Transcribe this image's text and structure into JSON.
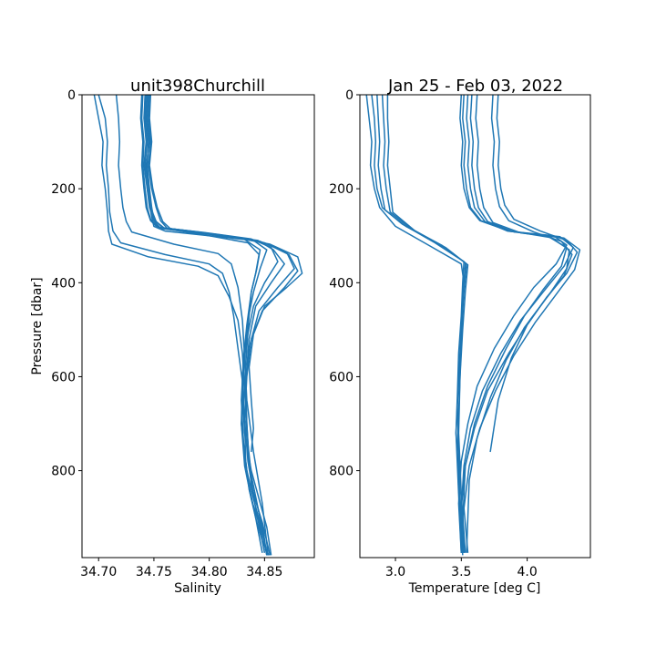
{
  "chart_data": [
    {
      "type": "line",
      "title": "unit398Churchill",
      "xlabel": "Salinity",
      "ylabel": "Pressure [dbar]",
      "xlim": [
        34.685,
        34.895
      ],
      "ylim": [
        985,
        0
      ],
      "y_inverted": true,
      "xticks": [
        34.7,
        34.75,
        34.8,
        34.85
      ],
      "xtick_labels": [
        "34.70",
        "34.75",
        "34.80",
        "34.85"
      ],
      "yticks": [
        0,
        200,
        400,
        600,
        800
      ],
      "ytick_labels": [
        "0",
        "200",
        "400",
        "600",
        "800"
      ],
      "line_color": "#1f77b4",
      "grid": false,
      "series": [
        {
          "x": [
            34.742,
            34.741,
            34.743,
            34.741,
            34.744,
            34.746,
            34.748,
            34.75,
            34.76,
            34.8,
            34.835,
            34.845,
            34.842,
            34.838,
            34.836,
            34.834,
            34.832,
            34.834,
            34.836,
            34.838,
            34.844,
            34.849,
            34.852
          ],
          "y": [
            0,
            50,
            100,
            150,
            200,
            230,
            260,
            280,
            290,
            300,
            315,
            340,
            380,
            420,
            470,
            540,
            610,
            700,
            780,
            830,
            880,
            930,
            980
          ]
        },
        {
          "x": [
            34.745,
            34.744,
            34.746,
            34.743,
            34.745,
            34.747,
            34.752,
            34.76,
            34.8,
            34.84,
            34.852,
            34.846,
            34.84,
            34.835,
            34.832,
            34.83,
            34.832,
            34.838,
            34.845,
            34.852,
            34.856
          ],
          "y": [
            0,
            50,
            100,
            150,
            200,
            240,
            270,
            285,
            300,
            310,
            330,
            370,
            420,
            480,
            550,
            640,
            720,
            800,
            860,
            920,
            980
          ]
        },
        {
          "x": [
            34.74,
            34.739,
            34.741,
            34.74,
            34.742,
            34.744,
            34.747,
            34.754,
            34.79,
            34.83,
            34.846,
            34.843,
            34.838,
            34.834,
            34.831,
            34.829,
            34.831,
            34.835,
            34.842,
            34.848
          ],
          "y": [
            0,
            50,
            100,
            150,
            200,
            240,
            265,
            282,
            292,
            305,
            330,
            370,
            420,
            490,
            560,
            650,
            740,
            820,
            900,
            975
          ]
        },
        {
          "x": [
            34.744,
            34.743,
            34.745,
            34.744,
            34.746,
            34.748,
            34.75,
            34.758,
            34.795,
            34.838,
            34.856,
            34.862,
            34.85,
            34.84,
            34.834,
            34.83,
            34.829,
            34.833,
            34.84,
            34.847,
            34.852
          ],
          "y": [
            0,
            50,
            100,
            150,
            200,
            240,
            265,
            283,
            293,
            307,
            325,
            355,
            400,
            450,
            520,
            600,
            700,
            790,
            860,
            920,
            980
          ]
        },
        {
          "x": [
            34.743,
            34.742,
            34.744,
            34.742,
            34.744,
            34.746,
            34.75,
            34.756,
            34.8,
            34.844,
            34.858,
            34.868,
            34.856,
            34.842,
            34.836,
            34.833,
            34.834,
            34.836,
            34.842,
            34.85
          ],
          "y": [
            0,
            50,
            100,
            150,
            200,
            240,
            268,
            284,
            296,
            310,
            330,
            360,
            400,
            450,
            520,
            610,
            700,
            790,
            880,
            975
          ]
        },
        {
          "x": [
            34.739,
            34.738,
            34.74,
            34.739,
            34.741,
            34.743,
            34.747,
            34.754,
            34.8,
            34.846,
            34.87,
            34.877,
            34.862,
            34.845,
            34.837,
            34.832,
            34.829,
            34.832,
            34.838,
            34.846,
            34.853
          ],
          "y": [
            0,
            50,
            100,
            150,
            200,
            240,
            268,
            284,
            297,
            312,
            335,
            370,
            410,
            460,
            530,
            620,
            700,
            790,
            860,
            920,
            980
          ]
        },
        {
          "x": [
            34.746,
            34.745,
            34.747,
            34.745,
            34.748,
            34.752,
            34.756,
            34.762,
            34.81,
            34.85,
            34.872,
            34.88,
            34.868,
            34.848,
            34.838,
            34.834,
            34.832,
            34.835,
            34.84,
            34.848,
            34.855
          ],
          "y": [
            0,
            50,
            100,
            150,
            200,
            240,
            268,
            284,
            298,
            315,
            340,
            375,
            410,
            460,
            520,
            600,
            690,
            780,
            850,
            910,
            980
          ]
        },
        {
          "x": [
            34.747,
            34.746,
            34.748,
            34.746,
            34.749,
            34.753,
            34.758,
            34.765,
            34.815,
            34.855,
            34.88,
            34.884,
            34.87,
            34.85,
            34.84,
            34.836,
            34.838,
            34.84,
            34.838
          ],
          "y": [
            0,
            50,
            100,
            150,
            200,
            240,
            270,
            285,
            300,
            318,
            345,
            380,
            410,
            450,
            510,
            580,
            650,
            710,
            760
          ]
        },
        {
          "x": [
            34.7,
            34.706,
            34.708,
            34.707,
            34.709,
            34.71,
            34.713,
            34.72,
            34.76,
            34.8,
            34.812,
            34.818,
            34.822,
            34.826,
            34.83,
            34.832,
            34.833,
            34.836,
            34.842,
            34.848,
            34.854
          ],
          "y": [
            0,
            50,
            100,
            150,
            200,
            250,
            290,
            315,
            340,
            360,
            380,
            420,
            470,
            540,
            610,
            700,
            780,
            840,
            900,
            950,
            980
          ]
        },
        {
          "x": [
            34.696,
            34.7,
            34.704,
            34.703,
            34.706,
            34.708,
            34.709,
            34.712,
            34.745,
            34.79,
            34.808,
            34.818,
            34.826,
            34.83,
            34.832,
            34.834,
            34.838,
            34.845,
            34.851
          ],
          "y": [
            0,
            50,
            100,
            150,
            200,
            250,
            290,
            318,
            345,
            365,
            385,
            430,
            480,
            550,
            630,
            720,
            810,
            890,
            970
          ]
        },
        {
          "x": [
            34.716,
            34.718,
            34.719,
            34.718,
            34.72,
            34.722,
            34.725,
            34.73,
            34.768,
            34.808,
            34.82,
            34.826,
            34.83,
            34.832,
            34.834,
            34.84,
            34.848,
            34.853
          ],
          "y": [
            0,
            50,
            100,
            150,
            200,
            240,
            270,
            292,
            318,
            338,
            360,
            410,
            480,
            560,
            650,
            760,
            870,
            975
          ]
        }
      ]
    },
    {
      "type": "line",
      "title": "Jan 25 - Feb 03, 2022",
      "xlabel": "Temperature [deg C]",
      "ylabel": "",
      "xlim": [
        2.73,
        4.48
      ],
      "ylim": [
        985,
        0
      ],
      "y_inverted": true,
      "xticks": [
        3.0,
        3.5,
        4.0
      ],
      "xtick_labels": [
        "3.0",
        "3.5",
        "4.0"
      ],
      "yticks": [
        0,
        200,
        400,
        600,
        800
      ],
      "ytick_labels": [
        "0",
        "200",
        "400",
        "600",
        "800"
      ],
      "line_color": "#1f77b4",
      "grid": false,
      "series": [
        {
          "x": [
            2.78,
            2.8,
            2.82,
            2.81,
            2.84,
            2.88,
            3.0,
            3.25,
            3.5,
            3.52,
            3.51,
            3.5,
            3.49,
            3.48,
            3.47,
            3.48,
            3.5,
            3.51
          ],
          "y": [
            0,
            50,
            100,
            150,
            200,
            240,
            280,
            320,
            360,
            400,
            460,
            520,
            600,
            680,
            760,
            840,
            920,
            980
          ]
        },
        {
          "x": [
            2.82,
            2.84,
            2.85,
            2.84,
            2.86,
            2.9,
            3.05,
            3.3,
            3.52,
            3.51,
            3.5,
            3.48,
            3.47,
            3.46,
            3.48,
            3.5,
            3.52
          ],
          "y": [
            0,
            50,
            100,
            150,
            200,
            240,
            275,
            315,
            355,
            400,
            470,
            550,
            640,
            720,
            810,
            900,
            975
          ]
        },
        {
          "x": [
            2.86,
            2.87,
            2.88,
            2.87,
            2.89,
            2.92,
            3.08,
            3.35,
            3.53,
            3.52,
            3.5,
            3.49,
            3.47,
            3.48,
            3.49,
            3.51
          ],
          "y": [
            0,
            50,
            100,
            150,
            200,
            245,
            280,
            320,
            358,
            400,
            480,
            560,
            660,
            760,
            860,
            975
          ]
        },
        {
          "x": [
            2.9,
            2.91,
            2.92,
            2.91,
            2.93,
            2.96,
            3.12,
            3.38,
            3.54,
            3.52,
            3.5,
            3.48,
            3.46,
            3.48,
            3.5
          ],
          "y": [
            0,
            50,
            100,
            150,
            200,
            250,
            285,
            325,
            360,
            420,
            500,
            600,
            720,
            850,
            975
          ]
        },
        {
          "x": [
            2.94,
            2.94,
            2.95,
            2.94,
            2.96,
            2.98,
            3.15,
            3.4,
            3.55,
            3.53,
            3.51,
            3.49,
            3.48,
            3.5,
            3.53
          ],
          "y": [
            0,
            50,
            100,
            150,
            200,
            250,
            290,
            330,
            362,
            420,
            500,
            600,
            720,
            850,
            975
          ]
        },
        {
          "x": [
            3.55,
            3.54,
            3.56,
            3.55,
            3.57,
            3.6,
            3.68,
            3.85,
            4.2,
            4.3,
            4.22,
            4.05,
            3.9,
            3.75,
            3.62,
            3.55,
            3.5,
            3.48,
            3.5
          ],
          "y": [
            0,
            50,
            100,
            150,
            200,
            240,
            270,
            290,
            300,
            320,
            360,
            410,
            470,
            540,
            620,
            700,
            780,
            870,
            975
          ]
        },
        {
          "x": [
            3.58,
            3.57,
            3.59,
            3.58,
            3.6,
            3.63,
            3.7,
            3.9,
            4.25,
            4.35,
            4.28,
            4.12,
            3.95,
            3.8,
            3.66,
            3.57,
            3.52,
            3.5,
            3.52
          ],
          "y": [
            0,
            50,
            100,
            150,
            200,
            240,
            270,
            292,
            302,
            325,
            365,
            420,
            480,
            550,
            630,
            710,
            790,
            880,
            975
          ]
        },
        {
          "x": [
            3.52,
            3.51,
            3.53,
            3.52,
            3.54,
            3.57,
            3.65,
            3.88,
            4.18,
            4.32,
            4.3,
            4.18,
            4.02,
            3.86,
            3.7,
            3.6,
            3.53,
            3.5,
            3.52
          ],
          "y": [
            0,
            50,
            100,
            150,
            200,
            240,
            268,
            290,
            304,
            330,
            370,
            420,
            480,
            550,
            630,
            710,
            790,
            880,
            975
          ]
        },
        {
          "x": [
            3.62,
            3.61,
            3.63,
            3.62,
            3.64,
            3.67,
            3.74,
            3.95,
            4.28,
            4.4,
            4.36,
            4.22,
            4.06,
            3.9,
            3.76,
            3.64,
            3.56,
            3.52,
            3.55
          ],
          "y": [
            0,
            50,
            100,
            150,
            200,
            240,
            272,
            294,
            305,
            330,
            372,
            425,
            485,
            555,
            630,
            710,
            790,
            880,
            975
          ]
        },
        {
          "x": [
            3.5,
            3.49,
            3.51,
            3.5,
            3.52,
            3.56,
            3.64,
            3.86,
            4.15,
            4.3,
            4.26,
            4.12,
            3.98,
            3.84,
            3.7,
            3.6,
            3.53,
            3.5
          ],
          "y": [
            0,
            50,
            100,
            150,
            200,
            240,
            268,
            290,
            300,
            325,
            365,
            415,
            470,
            540,
            620,
            700,
            790,
            975
          ]
        },
        {
          "x": [
            3.78,
            3.77,
            3.79,
            3.78,
            3.8,
            3.83,
            3.9,
            4.1,
            4.3,
            4.38,
            4.3,
            4.15,
            4.0,
            3.88,
            3.78,
            3.72
          ],
          "y": [
            0,
            50,
            100,
            150,
            200,
            235,
            265,
            290,
            310,
            335,
            380,
            430,
            490,
            560,
            650,
            760
          ]
        },
        {
          "x": [
            3.74,
            3.73,
            3.75,
            3.74,
            3.76,
            3.79,
            3.86,
            4.05,
            4.26,
            4.34,
            4.28,
            4.14,
            3.98,
            3.84,
            3.72,
            3.62,
            3.56,
            3.54
          ],
          "y": [
            0,
            50,
            100,
            150,
            200,
            238,
            268,
            292,
            312,
            340,
            385,
            435,
            495,
            565,
            645,
            730,
            820,
            975
          ]
        }
      ]
    }
  ]
}
